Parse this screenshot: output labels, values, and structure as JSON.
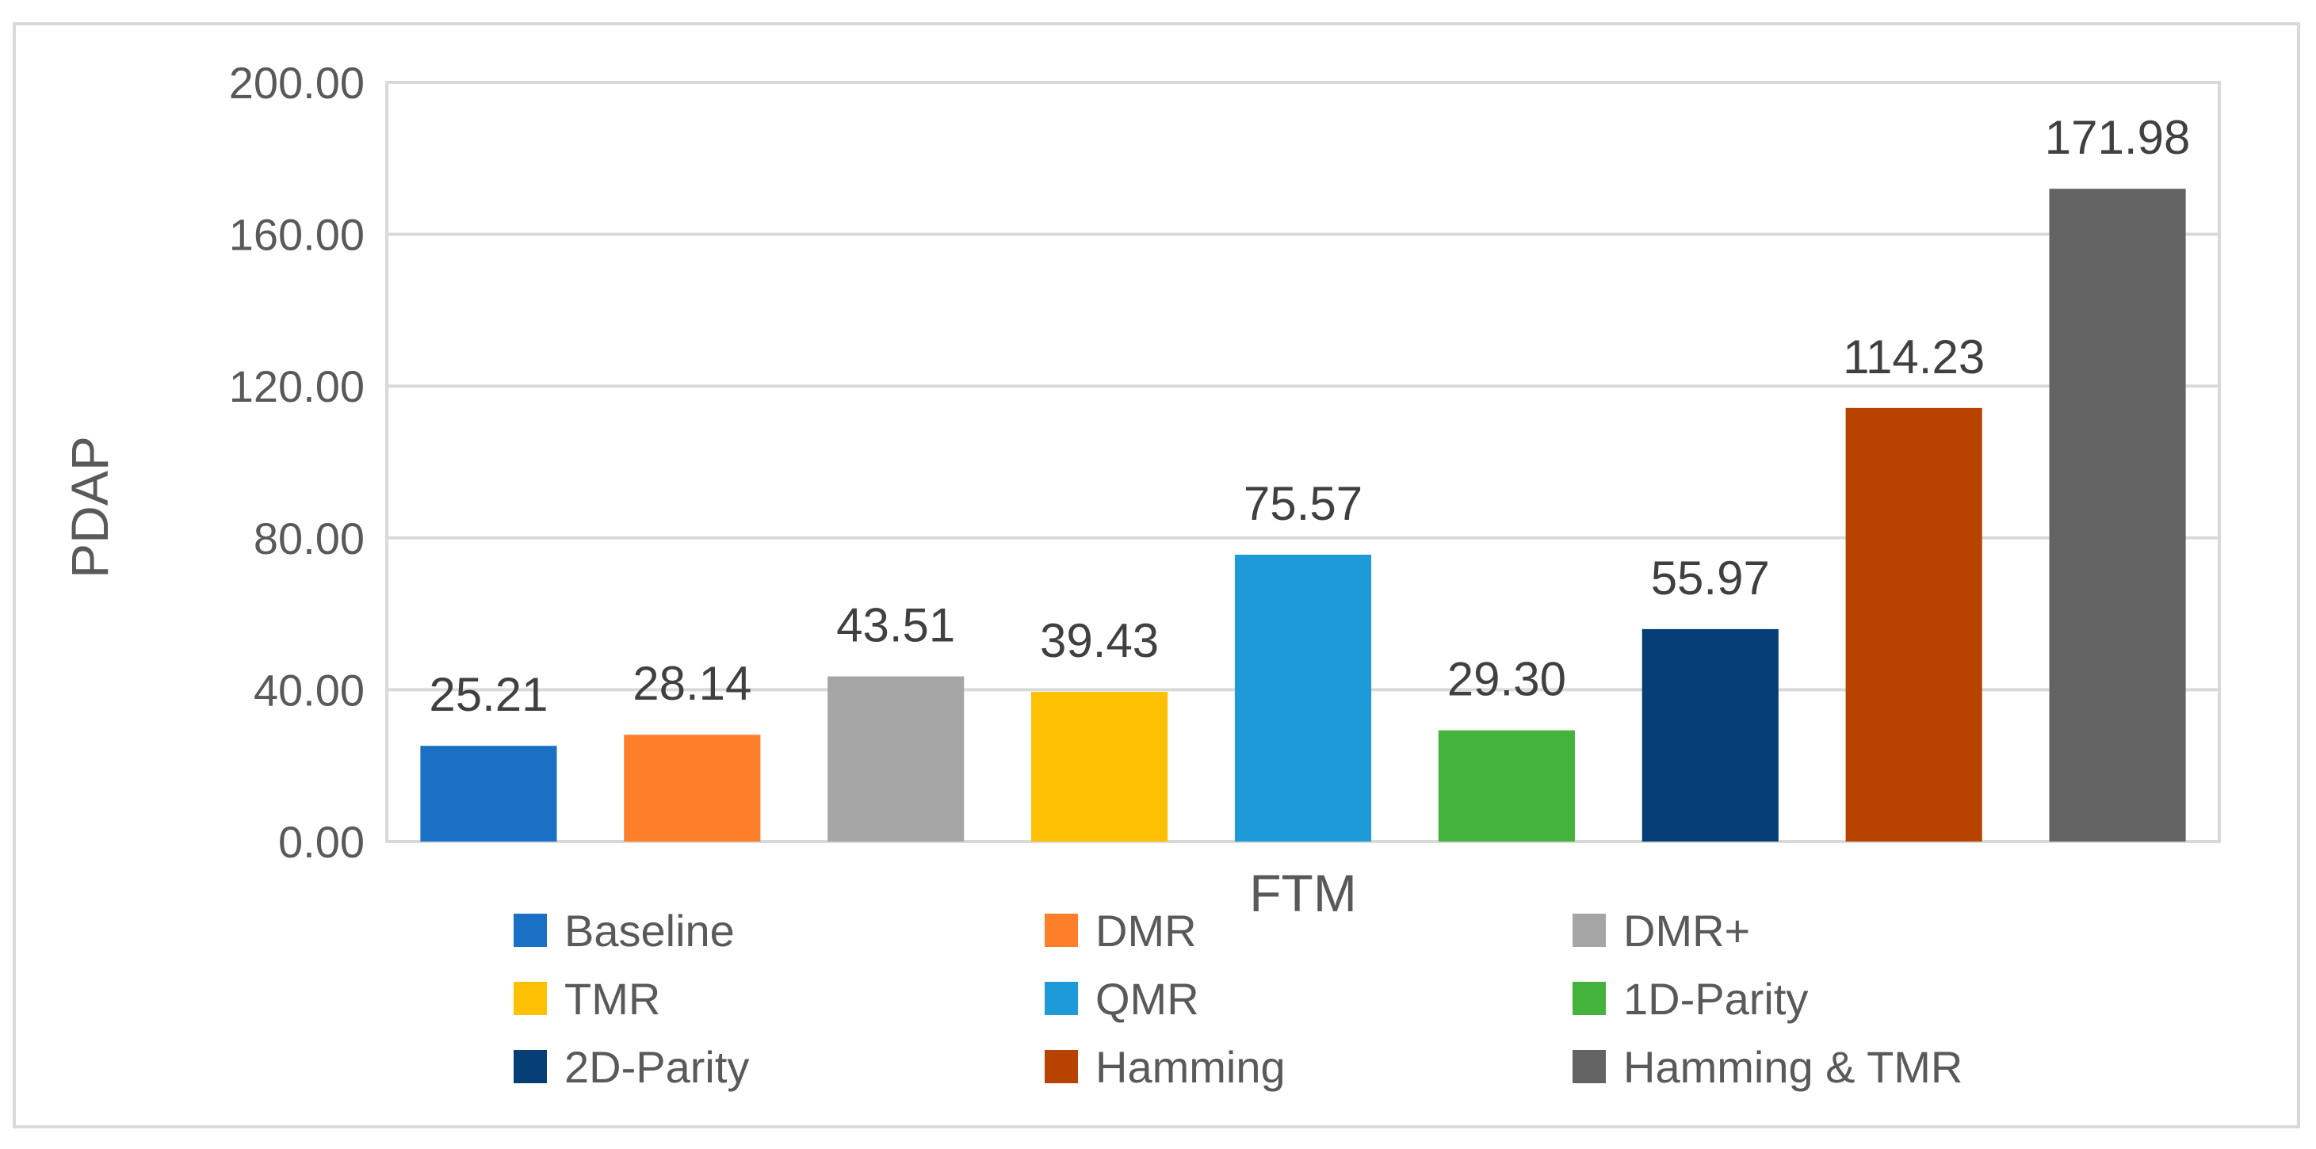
{
  "chart_data": {
    "type": "bar",
    "title": "",
    "xlabel": "FTM",
    "ylabel": "PDAP",
    "ylim": [
      0,
      200
    ],
    "yticks": [
      "0.00",
      "40.00",
      "80.00",
      "120.00",
      "160.00",
      "200.00"
    ],
    "ytick_values": [
      0,
      40,
      80,
      120,
      160,
      200
    ],
    "grid": true,
    "legend_position": "bottom",
    "series": [
      {
        "name": "Baseline",
        "value": 25.21,
        "label": "25.21",
        "color": "#1a70c4"
      },
      {
        "name": "DMR",
        "value": 28.14,
        "label": "28.14",
        "color": "#fd7f2a"
      },
      {
        "name": "DMR+",
        "value": 43.51,
        "label": "43.51",
        "color": "#a5a5a5"
      },
      {
        "name": "TMR",
        "value": 39.43,
        "label": "39.43",
        "color": "#fdc002"
      },
      {
        "name": "QMR",
        "value": 75.57,
        "label": "75.57",
        "color": "#1f9ad8"
      },
      {
        "name": "1D-Parity",
        "value": 29.3,
        "label": "29.30",
        "color": "#44b33c"
      },
      {
        "name": "2D-Parity",
        "value": 55.97,
        "label": "55.97",
        "color": "#053f75"
      },
      {
        "name": "Hamming",
        "value": 114.23,
        "label": "114.23",
        "color": "#b84300"
      },
      {
        "name": "Hamming & TMR",
        "value": 171.98,
        "label": "171.98",
        "color": "#636363"
      }
    ]
  }
}
